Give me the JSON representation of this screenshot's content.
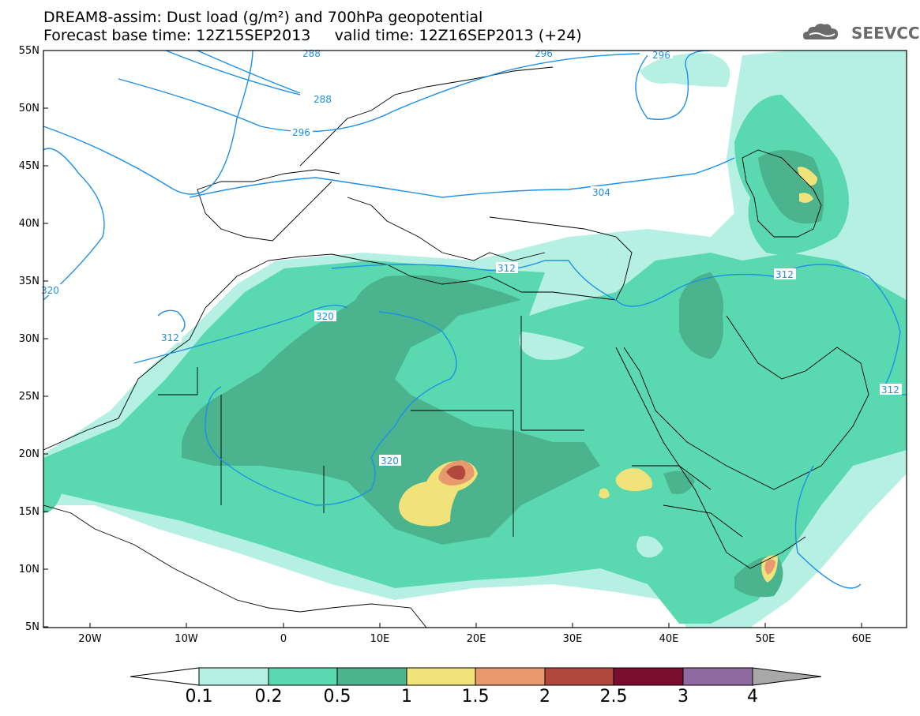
{
  "title": {
    "line1": "DREAM8-assim: Dust load (g/m²) and 700hPa geopotential",
    "line2": "Forecast base time: 12Z15SEP2013     valid time: 12Z16SEP2013 (+24)"
  },
  "logo": {
    "text": "SEEVCCC",
    "icon": "cloud-icon"
  },
  "lat_labels": [
    "55N",
    "50N",
    "45N",
    "40N",
    "35N",
    "30N",
    "25N",
    "20N",
    "15N",
    "10N",
    "5N"
  ],
  "lon_labels": [
    "20W",
    "10W",
    "0",
    "10E",
    "20E",
    "30E",
    "40E",
    "50E",
    "60E"
  ],
  "contours": {
    "field": "700hPa geopotential",
    "labels": [
      "288",
      "296",
      "296",
      "288",
      "296",
      "304",
      "312",
      "312",
      "312",
      "312",
      "320",
      "320",
      "320"
    ]
  },
  "colorbar": {
    "ticks": [
      "0.1",
      "0.2",
      "0.5",
      "1",
      "1.5",
      "2",
      "2.5",
      "3",
      "4"
    ],
    "colors": [
      "#ffffff",
      "#b5f0e3",
      "#5ad9b0",
      "#4cb38f",
      "#f0e37a",
      "#e89a6e",
      "#b0483d",
      "#7a0e30",
      "#8e6aa0",
      "#a8a8a8"
    ]
  },
  "colors": {
    "lvl1": "#b5f0e3",
    "lvl2": "#5ad9b0",
    "lvl3": "#4cb38f",
    "lvl4": "#f0e37a",
    "lvl5": "#e89a6e",
    "lvl6": "#b0483d",
    "contour": "#1e90e6"
  }
}
